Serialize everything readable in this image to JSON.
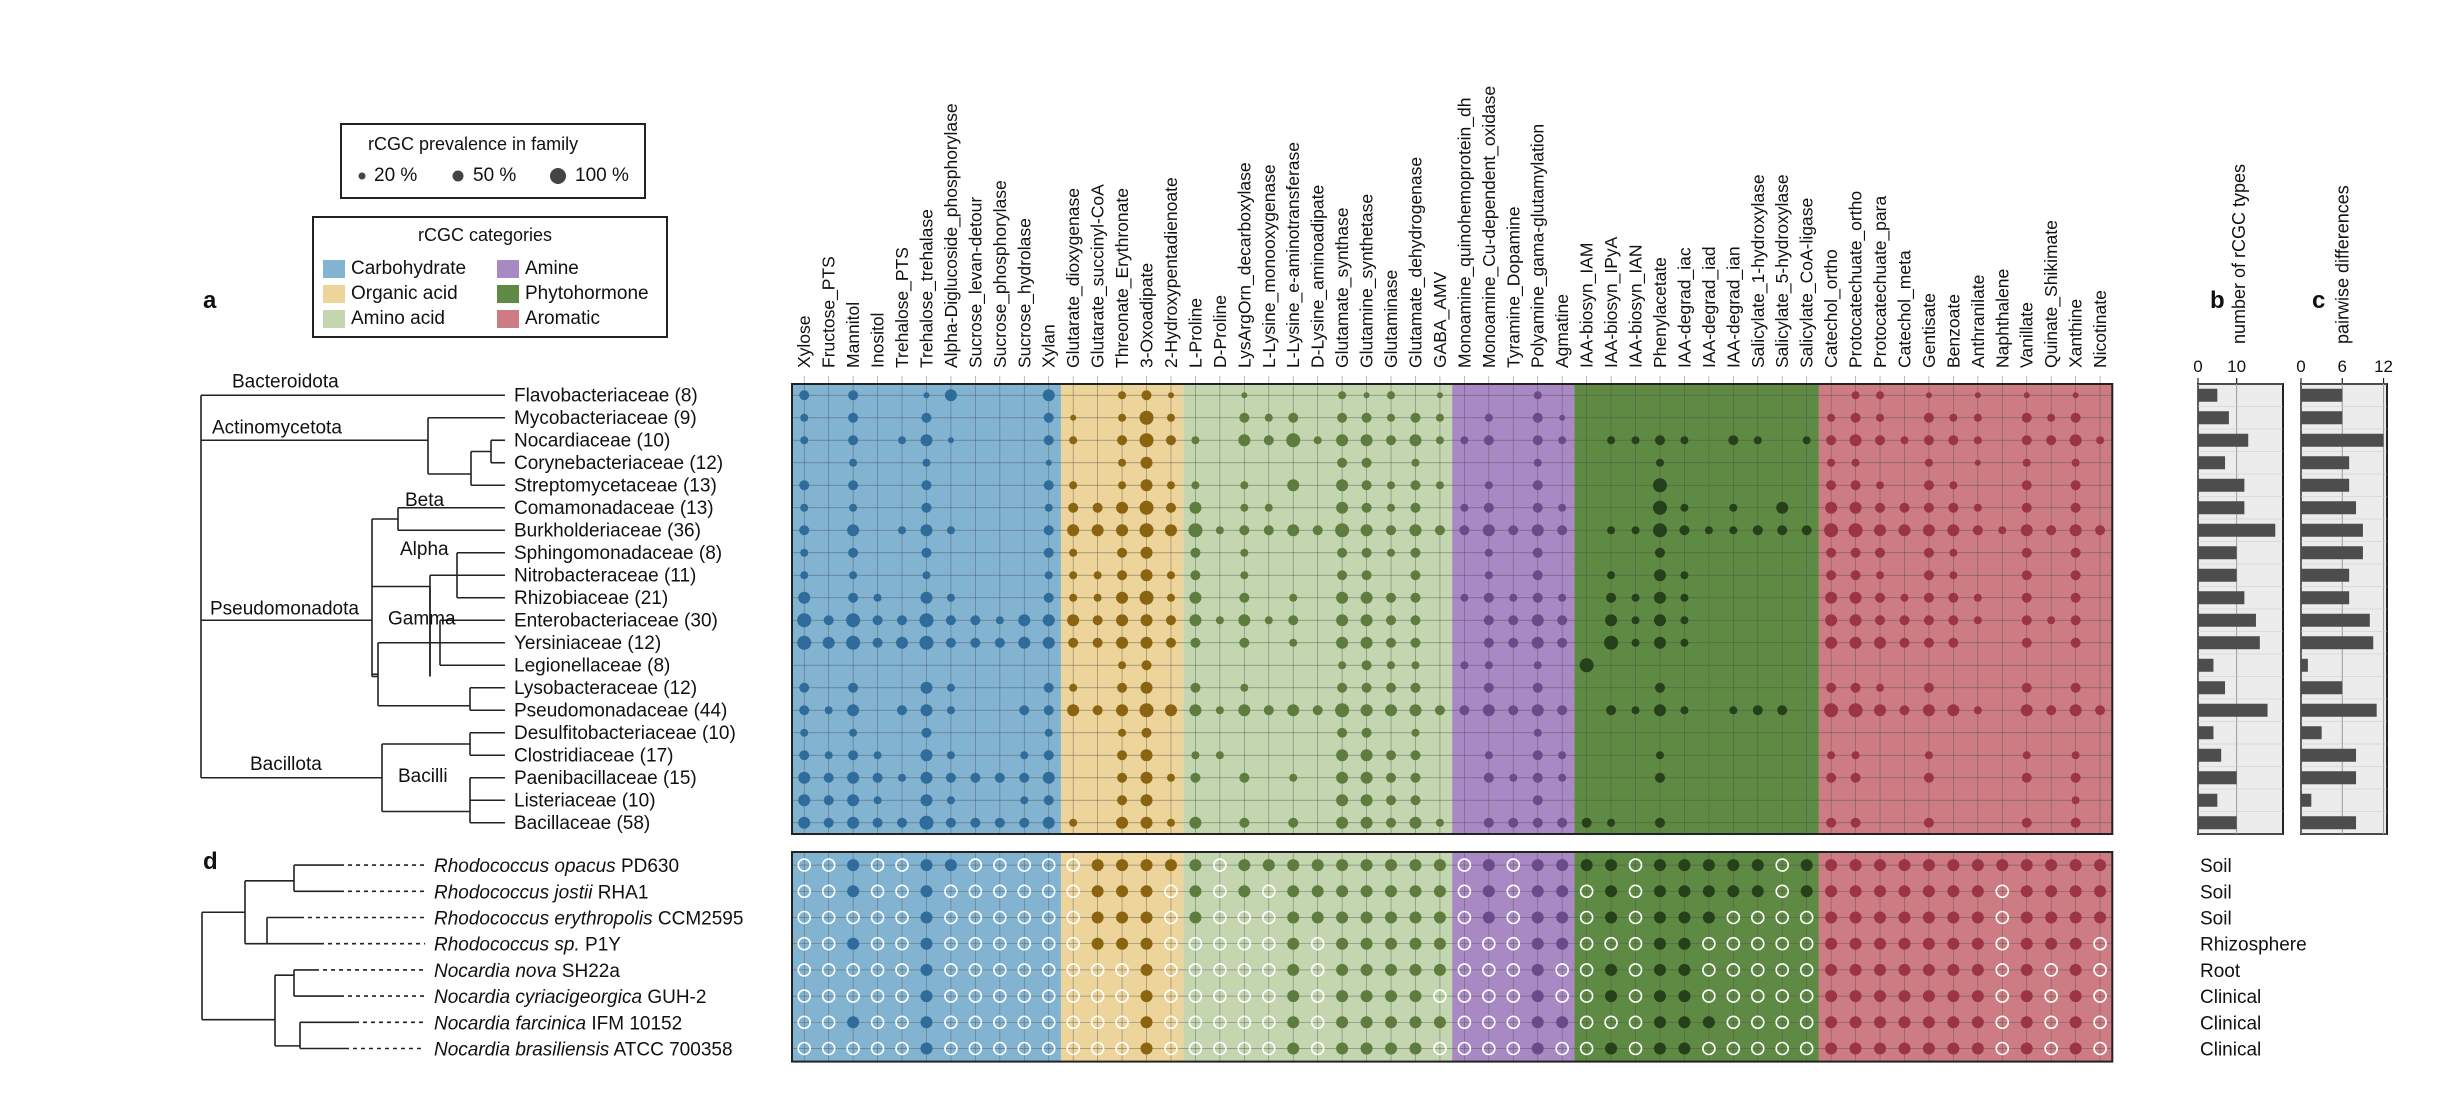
{
  "panel_letters": {
    "a": "a",
    "b": "b",
    "c": "c",
    "d": "d"
  },
  "legend_prevalence": {
    "title": "rCGC prevalence in family",
    "items": [
      "20 %",
      "50 %",
      "100 %"
    ],
    "sizes": [
      20,
      50,
      100
    ]
  },
  "legend_categories": {
    "title": "rCGC categories",
    "items": [
      {
        "label": "Carbohydrate",
        "color": "#82b4d1"
      },
      {
        "label": "Organic acid",
        "color": "#ecd49a"
      },
      {
        "label": "Amino acid",
        "color": "#c3d6b0"
      },
      {
        "label": "Amine",
        "color": "#a889c4"
      },
      {
        "label": "Phytohormone",
        "color": "#5f8a43"
      },
      {
        "label": "Aromatic",
        "color": "#cd7c84"
      }
    ]
  },
  "chart_data": {
    "type": "dot-matrix",
    "title": "rCGC prevalence in family",
    "columns": [
      {
        "name": "Xylose",
        "cat": 0
      },
      {
        "name": "Fructose_PTS",
        "cat": 0
      },
      {
        "name": "Mannitol",
        "cat": 0
      },
      {
        "name": "Inositol",
        "cat": 0
      },
      {
        "name": "Trehalose_PTS",
        "cat": 0
      },
      {
        "name": "Trehalose_trehalase",
        "cat": 0
      },
      {
        "name": "Alpha-Diglucoside_phosphorylase",
        "cat": 0
      },
      {
        "name": "Sucrose_levan-detour",
        "cat": 0
      },
      {
        "name": "Sucrose_phosphorylase",
        "cat": 0
      },
      {
        "name": "Sucrose_hydrolase",
        "cat": 0
      },
      {
        "name": "Xylan",
        "cat": 0
      },
      {
        "name": "Glutarate_dioxygenase",
        "cat": 1
      },
      {
        "name": "Glutarate_succinyl-CoA",
        "cat": 1
      },
      {
        "name": "Threonate_Erythronate",
        "cat": 1
      },
      {
        "name": "3-Oxoadipate",
        "cat": 1
      },
      {
        "name": "2-Hydroxypentadienoate",
        "cat": 1
      },
      {
        "name": "L-Proline",
        "cat": 2
      },
      {
        "name": "D-Proline",
        "cat": 2
      },
      {
        "name": "LysArgOrn_decarboxylase",
        "cat": 2
      },
      {
        "name": "L-Lysine_monooxygenase",
        "cat": 2
      },
      {
        "name": "L-Lysine_e-aminotransferase",
        "cat": 2
      },
      {
        "name": "D-Lysine_aminoadipate",
        "cat": 2
      },
      {
        "name": "Glutamate_synthase",
        "cat": 2
      },
      {
        "name": "Glutamine_synthetase",
        "cat": 2
      },
      {
        "name": "Glutaminase",
        "cat": 2
      },
      {
        "name": "Glutamate_dehydrogenase",
        "cat": 2
      },
      {
        "name": "GABA_AMV",
        "cat": 2
      },
      {
        "name": "Monoamine_quinohemoprotein_dh",
        "cat": 3
      },
      {
        "name": "Monoamine_Cu-dependent_oxidase",
        "cat": 3
      },
      {
        "name": "Tyramine_Dopamine",
        "cat": 3
      },
      {
        "name": "Polyamine_gama-glutamylation",
        "cat": 3
      },
      {
        "name": "Agmatine",
        "cat": 3
      },
      {
        "name": "IAA-biosyn_IAM",
        "cat": 4
      },
      {
        "name": "IAA-biosyn_IPyA",
        "cat": 4
      },
      {
        "name": "IAA-biosyn_IAN",
        "cat": 4
      },
      {
        "name": "Phenylacetate",
        "cat": 4
      },
      {
        "name": "IAA-degrad_iac",
        "cat": 4
      },
      {
        "name": "IAA-degrad_iad",
        "cat": 4
      },
      {
        "name": "IAA-degrad_ian",
        "cat": 4
      },
      {
        "name": "Salicylate_1-hydroxylase",
        "cat": 4
      },
      {
        "name": "Salicylate_5-hydroxylase",
        "cat": 4
      },
      {
        "name": "Salicylate_CoA-ligase",
        "cat": 4
      },
      {
        "name": "Catechol_ortho",
        "cat": 5
      },
      {
        "name": "Protocatechuate_ortho",
        "cat": 5
      },
      {
        "name": "Protocatechuate_para",
        "cat": 5
      },
      {
        "name": "Catechol_meta",
        "cat": 5
      },
      {
        "name": "Gentisate",
        "cat": 5
      },
      {
        "name": "Benzoate",
        "cat": 5
      },
      {
        "name": "Anthranilate",
        "cat": 5
      },
      {
        "name": "Naphthalene",
        "cat": 5
      },
      {
        "name": "Vanillate",
        "cat": 5
      },
      {
        "name": "Quinate_Shikimate",
        "cat": 5
      },
      {
        "name": "Xanthine",
        "cat": 5
      },
      {
        "name": "Nicotinate",
        "cat": 5
      }
    ],
    "families": [
      {
        "name": "Flavobacteriaceae (8)",
        "types": 5,
        "diffs": 6
      },
      {
        "name": "Mycobacteriaceae (9)",
        "types": 8,
        "diffs": 6
      },
      {
        "name": "Nocardiaceae (10)",
        "types": 13,
        "diffs": 12
      },
      {
        "name": "Corynebacteriaceae (12)",
        "types": 7,
        "diffs": 7
      },
      {
        "name": "Streptomycetaceae (13)",
        "types": 12,
        "diffs": 7
      },
      {
        "name": "Comamonadaceae (13)",
        "types": 12,
        "diffs": 8
      },
      {
        "name": "Burkholderiaceae (36)",
        "types": 20,
        "diffs": 9
      },
      {
        "name": "Sphingomonadaceae (8)",
        "types": 10,
        "diffs": 9
      },
      {
        "name": "Nitrobacteraceae (11)",
        "types": 10,
        "diffs": 7
      },
      {
        "name": "Rhizobiaceae (21)",
        "types": 12,
        "diffs": 7
      },
      {
        "name": "Enterobacteriaceae (30)",
        "types": 15,
        "diffs": 10
      },
      {
        "name": "Yersiniaceae (12)",
        "types": 16,
        "diffs": 10.5
      },
      {
        "name": "Legionellaceae (8)",
        "types": 4,
        "diffs": 1
      },
      {
        "name": "Lysobacteraceae (12)",
        "types": 7,
        "diffs": 6
      },
      {
        "name": "Pseudomonadaceae (44)",
        "types": 18,
        "diffs": 11
      },
      {
        "name": "Desulfitobacteriaceae (10)",
        "types": 4,
        "diffs": 3
      },
      {
        "name": "Clostridiaceae (17)",
        "types": 6,
        "diffs": 8
      },
      {
        "name": "Paenibacillaceae (15)",
        "types": 10,
        "diffs": 8
      },
      {
        "name": "Listeriaceae (10)",
        "types": 5,
        "diffs": 1.5
      },
      {
        "name": "Bacillaceae (58)",
        "types": 10,
        "diffs": 8
      }
    ],
    "clades": {
      "bacteroidota": "Bacteroidota",
      "actinomycetota": "Actinomycetota",
      "pseudomonadota": "Pseudomonadota",
      "beta": "Beta",
      "alpha": "Alpha",
      "gamma": "Gamma",
      "bacillota": "Bacillota",
      "bacilli": "Bacilli"
    },
    "panel_b": {
      "xlabel": "number of rCGC types",
      "ticks": [
        0,
        10
      ],
      "xlim": [
        0,
        22
      ]
    },
    "panel_c": {
      "xlabel": "pairwise  differences",
      "ticks": [
        0,
        6,
        12
      ],
      "xlim": [
        0,
        12.5
      ]
    },
    "strains": [
      {
        "genus_species": "Rhodococcus opacus",
        "strain": " PD630",
        "niche": "Soil"
      },
      {
        "genus_species": "Rhodococcus jostii",
        "strain": " RHA1",
        "niche": "Soil"
      },
      {
        "genus_species": "Rhodococcus erythropolis",
        "strain": " CCM2595",
        "niche": "Soil"
      },
      {
        "genus_species": "Rhodococcus sp.",
        "strain": " P1Y",
        "niche": "Rhizosphere"
      },
      {
        "genus_species": "Nocardia nova",
        "strain": " SH22a",
        "niche": "Root"
      },
      {
        "genus_species": "Nocardia cyriacigeorgica",
        "strain": " GUH-2",
        "niche": "Clinical"
      },
      {
        "genus_species": "Nocardia farcinica",
        "strain": " IFM 10152",
        "niche": "Clinical"
      },
      {
        "genus_species": "Nocardia brasiliensis",
        "strain": " ATCC 700358",
        "niche": "Clinical"
      }
    ],
    "category_colors": [
      "#82b4d1",
      "#ecd49a",
      "#c3d6b0",
      "#a889c4",
      "#5f8a43",
      "#cd7c84"
    ],
    "dot_colors": [
      "#2f6c9c",
      "#8a6410",
      "#5e7c3e",
      "#6a4a8a",
      "#25401a",
      "#9b3546"
    ],
    "family_dots": [
      "0:5:2,2:5:4,5:3:2,6:6:3,10:6:2,13:4:2,14:5:2,15:3:2,18:3:2,22:4:2,23:3:2,24:4:2,26:3:2,30:4:2,43:4:2,44:4:2,46:3:2,48:3:2,50:3:2,52:3:2",
      "0:4:2,2:5:2,5:5:2,10:5:2,11:3:2,13:4:2,14:7:2,15:4:2,18:5:2,19:4:2,20:5:2,22:5:2,23:5:2,24:4:2,25:5:2,26:4:2,28:4:2,30:5:2,31:3:2,42:4:2,43:5:2,44:4:2,46:5:2,47:4:2,48:4:2,50:5:2,51:4:2,52:5:2",
      "0:4:2,2:5:2,4:4:2,5:6:2,6:3:2,10:5:2,11:4:2,13:5:2,14:7:2,15:5:2,16:4:2,18:6:2,19:5:2,20:7:2,21:4:2,22:6:2,23:6:2,24:5:2,25:6:2,26:4:2,27:4:2,28:5:2,30:5:2,31:4:2,33:4:2,34:4:2,35:5:2,36:4:2,38:5:2,39:4:2,41:4:2,42:5:2,43:6:2,44:5:2,45:4:2,46:5:2,47:5:2,48:4:2,50:5:2,51:5:2,52:6:2,53:4:2",
      "2:4:2,5:4:2,10:3:2,13:4:2,14:6:2,22:5:2,23:5:2,25:4:2,30:4:2,35:4:2,42:4:2,43:4:2,46:4:2,48:3:2,50:4:2,52:4:2",
      "0:5:2,2:5:2,5:5:2,10:5:2,11:4:2,13:4:2,14:6:2,15:4:2,16:4:2,18:4:2,20:6:2,22:6:2,23:5:2,24:4:2,25:5:2,26:4:2,28:4:2,30:5:2,35:7:2,42:5:2,43:5:2,44:4:2,46:5:2,47:4:2,50:5:2,52:5:2",
      "0:4:2,2:4:2,5:5:2,10:4:2,11:5:2,12:5:2,13:6:2,14:7:2,15:5:2,16:6:2,18:4:2,19:4:2,22:6:2,23:5:2,24:4:2,25:5:2,27:4:2,28:5:2,30:5:2,31:4:2,35:7:2,36:4:2,38:4:2,40:6:2,42:6:2,43:6:2,44:5:2,45:5:2,46:5:2,47:5:2,48:4:2,50:5:2,52:5:2",
      "0:5:2,2:6:2,4:4:2,5:6:2,6:4:2,10:5:2,11:6:2,12:6:2,13:6:2,14:7:2,15:6:2,16:7:2,17:4:2,18:5:2,19:5:2,20:6:2,21:5:2,22:7:2,23:6:2,24:5:2,25:6:2,26:5:2,27:5:2,28:6:2,29:5:2,30:6:2,31:5:2,33:4:2,34:4:2,35:7:2,36:5:2,37:4:2,38:4:2,39:5:2,40:5:2,41:5:2,42:7:2,43:7:2,44:6:2,45:6:2,46:6:2,47:6:2,48:5:2,49:4:2,50:6:2,51:5:2,52:6:2,53:5:2",
      "0:4:2,2:5:2,5:5:2,10:5:2,11:4:2,13:5:2,14:6:2,16:5:2,18:4:2,22:5:2,23:5:2,24:4:2,25:5:2,28:4:2,30:5:2,35:5:2,42:5:2,43:5:2,44:5:2,46:5:2,47:4:2,50:5:2,52:5:2",
      "0:4:2,2:4:2,5:4:2,10:4:2,11:4:2,12:4:2,13:5:2,14:6:2,15:4:2,16:5:2,18:4:2,22:5:2,23:5:2,25:5:2,28:4:2,30:5:2,33:4:2,35:6:2,36:4:2,42:5:2,43:5:2,44:4:2,46:5:2,47:4:2,50:5:2,52:5:2",
      "0:6:2,2:5:2,3:4:2,5:6:2,6:4:2,10:5:2,11:4:2,12:4:2,13:6:2,14:7:2,15:4:2,16:6:2,18:5:2,20:4:2,22:6:2,23:6:2,24:5:2,25:5:2,27:4:2,28:5:2,29:4:2,30:5:2,31:4:2,33:5:2,34:4:2,35:6:2,36:4:2,42:6:2,43:6:2,44:5:2,45:4:2,46:5:2,47:5:2,48:4:2,50:5:2,52:5:2",
      "0:7:2,1:5:2,2:7:2,3:5:2,4:5:2,5:7:2,6:5:2,7:5:2,8:4:2,9:6:2,10:6:2,11:6:2,12:5:2,13:6:2,14:6:2,15:5:2,16:6:2,17:4:2,18:6:2,19:4:2,20:5:2,22:6:2,23:6:2,24:5:2,25:5:2,28:5:2,29:5:2,30:6:2,31:5:2,33:6:2,34:4:2,35:6:2,36:4:2,42:6:2,43:6:2,44:5:2,45:5:2,46:5:2,47:5:2,48:4:2,50:5:2,51:4:2,52:5:2",
      "0:7:2,1:6:2,2:7:2,3:5:2,4:6:2,5:7:2,6:5:2,7:5:2,8:5:2,9:6:2,10:6:2,11:5:2,12:5:2,13:6:2,14:6:2,15:5:2,16:5:2,18:5:2,20:4:2,22:6:2,23:6:2,24:5:2,25:5:2,28:5:2,29:5:2,30:6:2,31:5:2,33:7:2,34:4:2,35:6:2,36:4:2,42:6:2,43:6:2,44:6:2,45:5:2,46:5:2,47:5:2,50:5:2,52:5:2",
      "13:4:2,14:5:2,22:4:2,23:5:2,24:4:2,25:4:2,27:4:2,28:4:2,30:4:2,32:7:2",
      "0:5:2,2:5:2,5:6:2,6:4:2,10:5:2,11:4:2,13:5:2,14:6:2,16:5:2,18:4:2,22:5:2,23:5:2,24:5:2,25:5:2,28:5:2,30:5:2,35:5:2,42:5:2,43:5:2,44:4:2,46:5:2,50:5:2,52:5:2",
      "0:5:2,1:4:2,2:6:2,4:5:2,5:6:2,6:4:2,9:5:2,10:5:2,11:6:2,12:5:2,13:6:2,14:7:2,15:6:2,16:6:2,17:4:2,18:6:2,19:5:2,20:6:2,21:5:2,22:7:2,23:6:2,24:6:2,25:6:2,26:5:2,27:5:2,28:6:2,29:5:2,30:6:2,31:5:2,33:5:2,34:4:2,35:6:2,36:4:2,38:4:2,39:5:2,40:5:2,42:7:2,43:7:2,44:6:2,45:5:2,46:6:2,47:6:2,48:4:2,50:6:2,51:5:2,52:6:2,53:5:2",
      "0:4:2,2:4:2,5:5:2,10:4:2,13:4:2,14:5:2,22:5:2,23:5:2,25:4:2,30:4:2",
      "0:5:2,1:4:2,2:5:2,3:4:2,5:6:2,6:4:2,9:4:2,10:5:2,13:5:2,14:6:2,16:4:2,17:4:2,22:6:2,23:6:2,24:5:2,25:5:2,28:4:2,30:5:2,31:4:2,35:4:2,42:4:2,43:4:2,46:4:2,50:4:2,52:4:2",
      "0:6:2,1:5:2,2:6:2,3:5:2,4:4:2,5:6:2,6:5:2,7:5:2,8:5:2,9:5:2,10:6:2,13:5:2,14:6:2,15:4:2,16:5:2,18:5:2,20:4:2,22:6:2,23:6:2,24:5:2,25:5:2,28:5:2,29:4:2,30:5:2,31:4:2,35:5:2,42:5:2,43:5:2,46:5:2,50:5:2,52:5:2",
      "0:6:2,1:5:2,2:6:2,3:4:2,5:6:2,6:4:2,9:4:2,10:5:2,13:5:2,14:6:2,22:6:2,23:6:2,24:5:2,25:5:2,30:5:2,52:4:2",
      "0:6:2,1:5:2,2:6:2,3:5:2,4:5:2,5:7:2,6:5:2,7:5:2,8:5:2,9:5:2,10:6:2,11:4:2,13:6:2,14:6:2,15:4:2,16:6:2,18:5:2,20:5:2,22:6:2,23:6:2,24:5:2,25:6:2,26:4:2,28:5:2,29:5:2,30:5:2,31:5:2,32:5:2,33:4:2,35:5:2,42:5:2,43:5:2,46:5:2,50:5:2,52:5:2"
    ],
    "strain_filled": [
      [
        2,
        5,
        6,
        12,
        13,
        14,
        15,
        16,
        18,
        19,
        20,
        21,
        22,
        23,
        24,
        25,
        26,
        28,
        30,
        31,
        32,
        33,
        35,
        36,
        37,
        38,
        39,
        41,
        42,
        43,
        44,
        45,
        46,
        47,
        48,
        49,
        50,
        51,
        52,
        53
      ],
      [
        2,
        5,
        12,
        13,
        14,
        16,
        18,
        20,
        21,
        22,
        23,
        24,
        25,
        26,
        28,
        30,
        31,
        33,
        35,
        36,
        37,
        38,
        39,
        41,
        42,
        43,
        44,
        45,
        46,
        47,
        48,
        50,
        51,
        52,
        53
      ],
      [
        5,
        12,
        13,
        14,
        16,
        20,
        21,
        22,
        23,
        24,
        25,
        26,
        28,
        30,
        31,
        33,
        35,
        36,
        37,
        42,
        43,
        44,
        45,
        46,
        47,
        48,
        50,
        51,
        52,
        53
      ],
      [
        2,
        5,
        12,
        13,
        14,
        20,
        22,
        23,
        24,
        25,
        26,
        30,
        31,
        35,
        36,
        42,
        43,
        44,
        45,
        46,
        47,
        48,
        50,
        51,
        52
      ],
      [
        5,
        14,
        20,
        22,
        23,
        24,
        25,
        26,
        30,
        33,
        35,
        36,
        42,
        43,
        44,
        45,
        46,
        47,
        48,
        50,
        52
      ],
      [
        5,
        14,
        20,
        22,
        23,
        24,
        25,
        30,
        33,
        35,
        36,
        42,
        43,
        44,
        45,
        46,
        47,
        48,
        50,
        52
      ],
      [
        2,
        5,
        14,
        20,
        22,
        23,
        24,
        25,
        26,
        30,
        31,
        35,
        36,
        37,
        42,
        43,
        44,
        45,
        46,
        47,
        48,
        50,
        52
      ],
      [
        5,
        14,
        20,
        22,
        23,
        24,
        25,
        30,
        33,
        35,
        36,
        42,
        43,
        44,
        45,
        46,
        47,
        48,
        50,
        52
      ]
    ]
  }
}
